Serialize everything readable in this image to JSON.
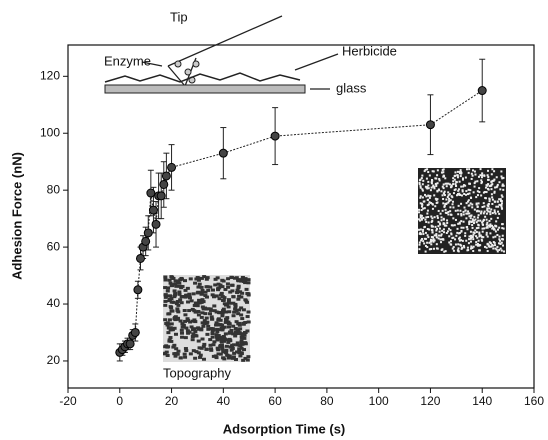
{
  "chart_data": {
    "type": "scatter",
    "x_label": "Adsorption Time (s)",
    "y_label": "Adhesion Force (nN)",
    "annotations": [
      "Tip",
      "Enzyme",
      "Herbicide",
      "glass",
      "Topography"
    ],
    "xlim": [
      -20,
      160
    ],
    "xticks": [
      -20,
      0,
      20,
      40,
      60,
      80,
      100,
      120,
      140,
      160
    ],
    "ylim": [
      10.5,
      131
    ],
    "yticks": [
      20,
      40,
      60,
      80,
      100,
      120
    ],
    "series": [
      {
        "color": "#222222",
        "x": [
          0,
          1,
          2,
          3,
          4,
          5,
          6,
          7,
          8,
          9,
          10,
          11,
          12,
          13,
          14,
          15,
          16,
          17,
          18,
          20,
          40,
          60,
          120,
          140
        ],
        "values": [
          23,
          24,
          25,
          26,
          26,
          29,
          30,
          45,
          56,
          60,
          62,
          65,
          79,
          73,
          68,
          78,
          78,
          82,
          85,
          88,
          93,
          99,
          103,
          115
        ],
        "errors": [
          3,
          2,
          2,
          2,
          2,
          2,
          3,
          3,
          4,
          4,
          5,
          6,
          8,
          8,
          8,
          8,
          8,
          8,
          8,
          8,
          9,
          10,
          10.5,
          11
        ]
      }
    ]
  }
}
